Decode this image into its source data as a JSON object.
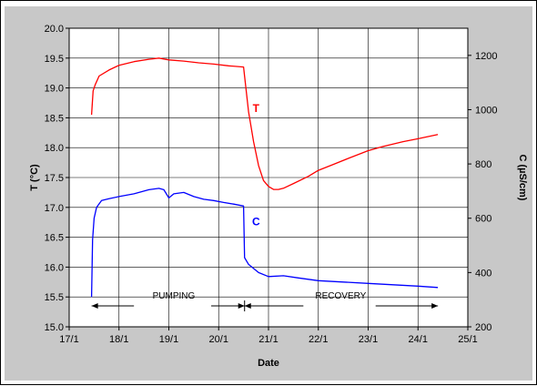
{
  "chart_data": {
    "type": "line",
    "title": "",
    "xlabel": "Date",
    "ylabel_left": "T (°C)",
    "ylabel_right": "C (µS/cm)",
    "x_ticks": [
      "17/1",
      "18/1",
      "19/1",
      "20/1",
      "21/1",
      "22/1",
      "23/1",
      "24/1",
      "25/1"
    ],
    "xlim": [
      17,
      25
    ],
    "y_left_ticks": [
      "15.0",
      "15.5",
      "16.0",
      "16.5",
      "17.0",
      "17.5",
      "18.0",
      "18.5",
      "19.0",
      "19.5",
      "20.0"
    ],
    "ylim_left": [
      15.0,
      20.0
    ],
    "y_right_ticks": [
      "200",
      "400",
      "600",
      "800",
      "1000",
      "1200"
    ],
    "ylim_right": [
      200,
      1300
    ],
    "grid": true,
    "series": [
      {
        "name": "T",
        "axis": "left",
        "color": "#ff0000",
        "x": [
          17.45,
          17.48,
          17.52,
          17.6,
          17.8,
          18.0,
          18.3,
          18.6,
          18.8,
          19.0,
          19.3,
          19.6,
          19.9,
          20.2,
          20.5,
          20.52,
          20.6,
          20.7,
          20.8,
          20.9,
          21.0,
          21.1,
          21.2,
          21.3,
          21.5,
          21.8,
          22.0,
          22.3,
          22.6,
          23.0,
          23.3,
          23.7,
          24.0,
          24.4
        ],
        "y": [
          18.55,
          18.95,
          19.05,
          19.2,
          19.3,
          19.38,
          19.44,
          19.48,
          19.5,
          19.47,
          19.45,
          19.42,
          19.4,
          19.37,
          19.35,
          19.2,
          18.6,
          18.1,
          17.7,
          17.45,
          17.35,
          17.3,
          17.3,
          17.32,
          17.4,
          17.52,
          17.62,
          17.72,
          17.82,
          17.95,
          18.02,
          18.1,
          18.15,
          18.22
        ]
      },
      {
        "name": "C",
        "axis": "right",
        "color": "#0000ff",
        "x": [
          17.45,
          17.47,
          17.5,
          17.55,
          17.65,
          17.8,
          18.0,
          18.3,
          18.6,
          18.8,
          18.9,
          19.0,
          19.1,
          19.3,
          19.5,
          19.7,
          19.9,
          20.1,
          20.3,
          20.5,
          20.52,
          20.6,
          20.8,
          21.0,
          21.3,
          21.6,
          22.0,
          22.5,
          23.0,
          23.5,
          24.0,
          24.4
        ],
        "y": [
          310,
          520,
          600,
          640,
          665,
          672,
          680,
          690,
          705,
          710,
          705,
          675,
          690,
          695,
          680,
          670,
          665,
          658,
          652,
          645,
          455,
          430,
          400,
          385,
          388,
          380,
          370,
          365,
          360,
          355,
          350,
          345
        ]
      }
    ],
    "annotations": {
      "series_label_t": "T",
      "series_label_c": "C",
      "pumping": "PUMPING",
      "recovery": "RECOVERY"
    }
  }
}
